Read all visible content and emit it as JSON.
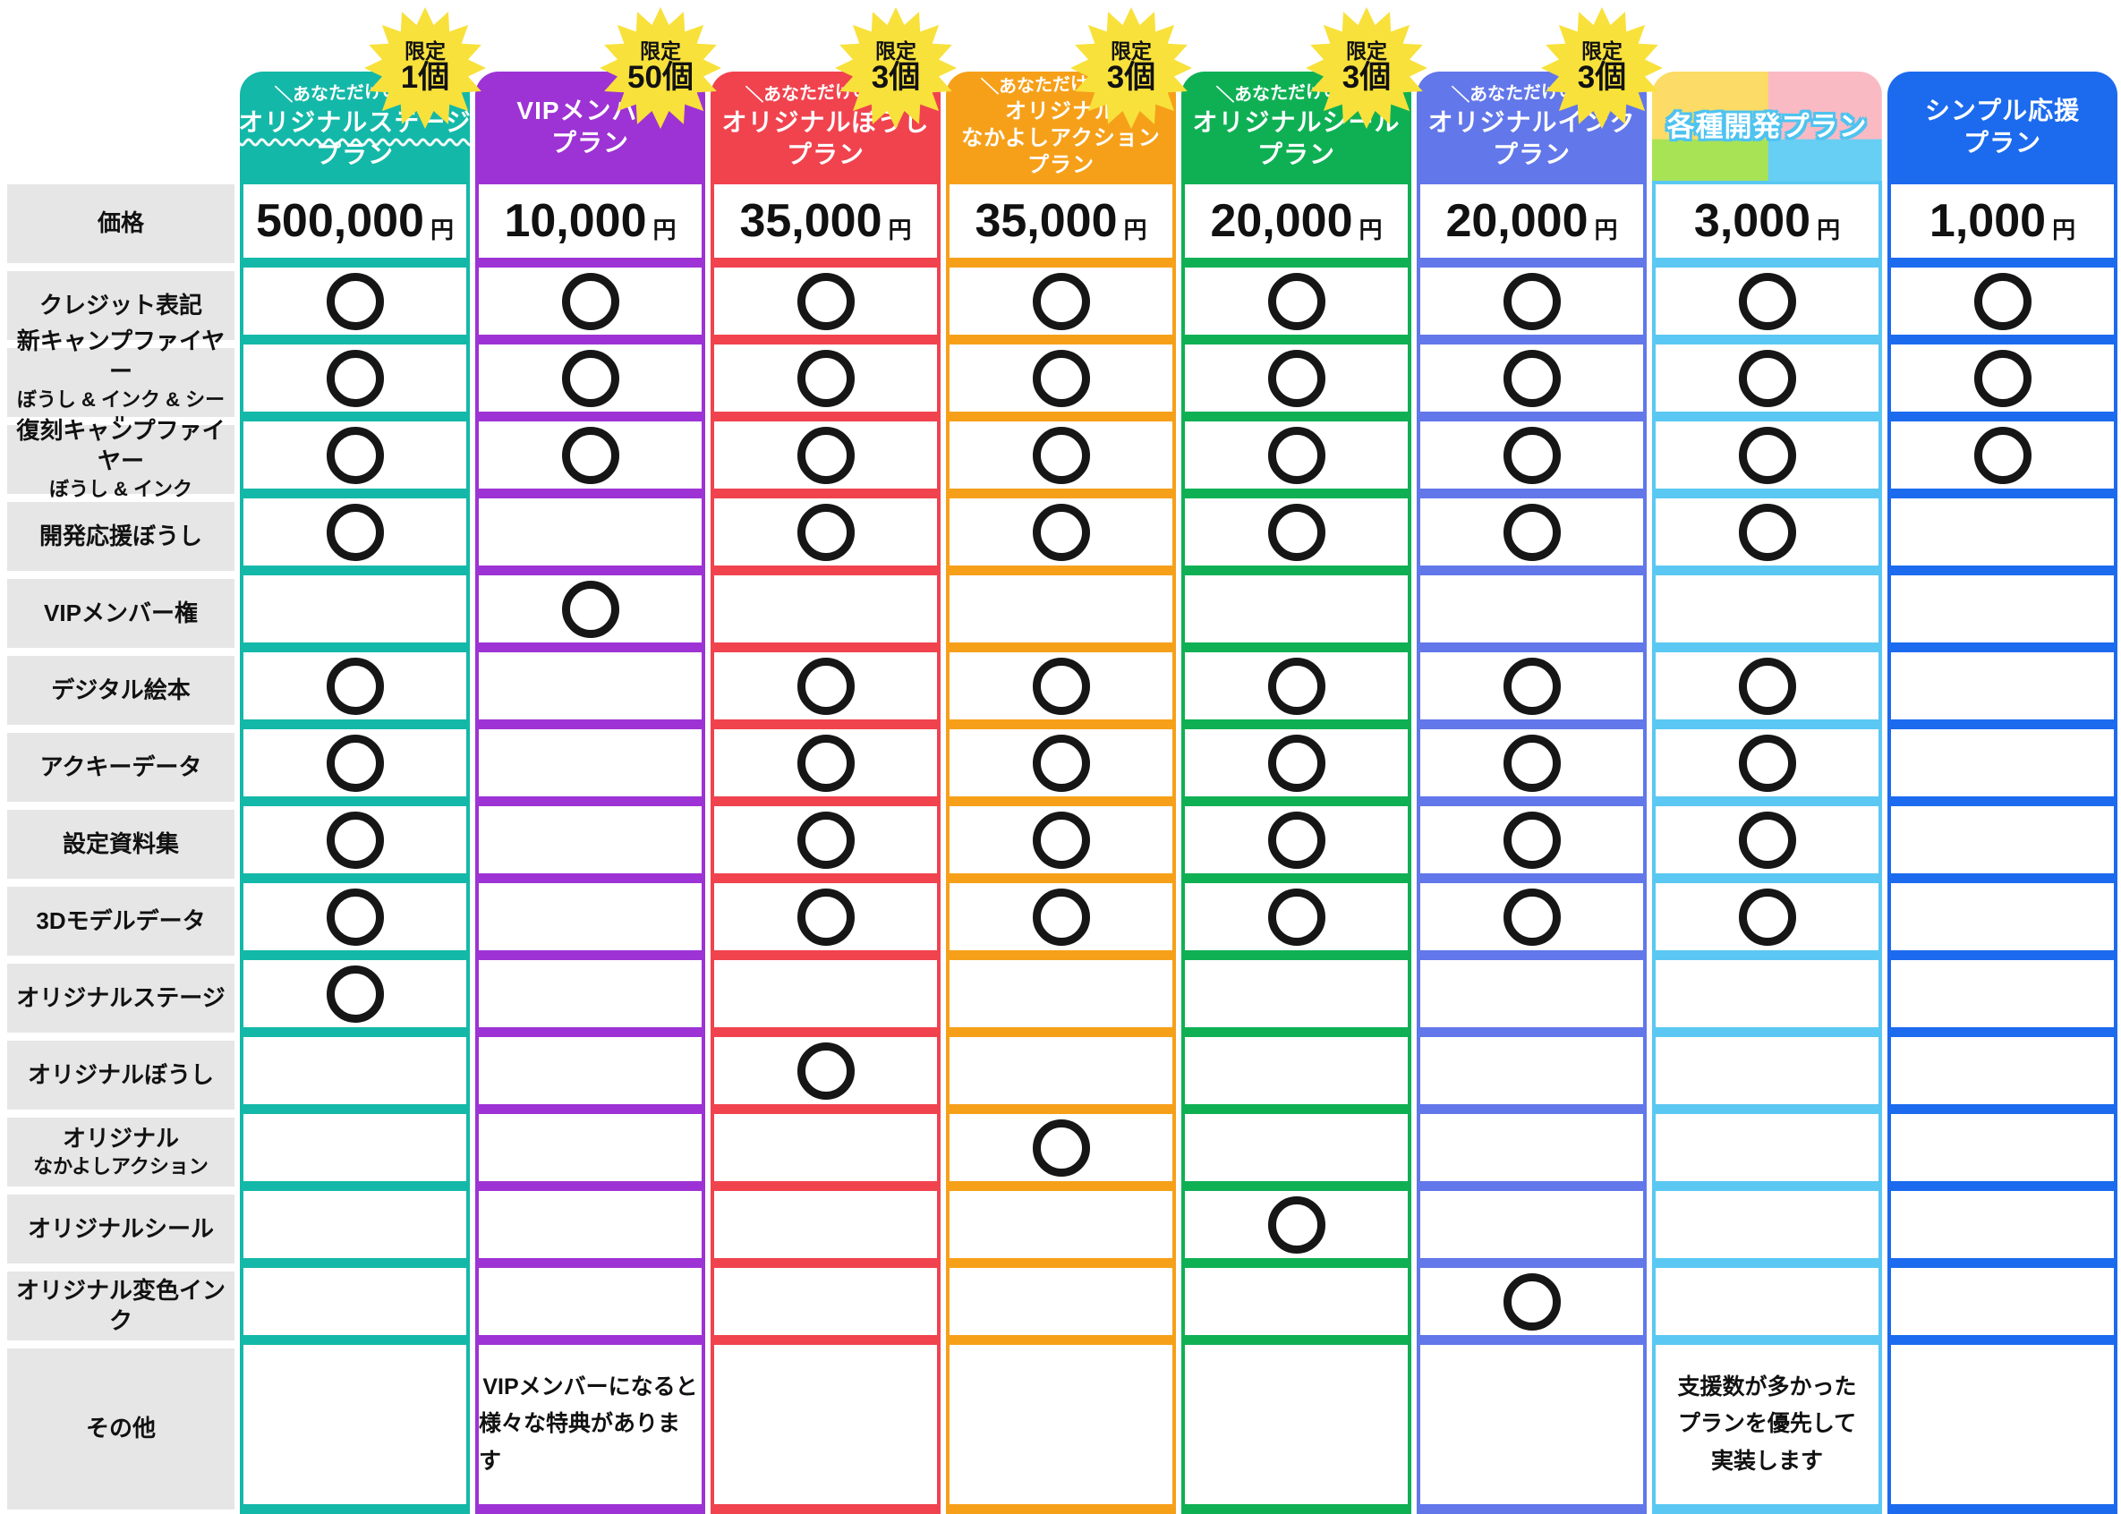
{
  "labels": {
    "price_row": "価格",
    "other_row": "その他",
    "feature_rows": [
      [
        "クレジット表記"
      ],
      [
        "新キャンプファイヤー",
        "ぼうし & インク & シール"
      ],
      [
        "復刻キャンプファイヤー",
        "ぼうし & インク"
      ],
      [
        "開発応援ぼうし"
      ],
      [
        "VIPメンバー権"
      ],
      [
        "デジタル絵本"
      ],
      [
        "アクキーデータ"
      ],
      [
        "設定資料集"
      ],
      [
        "3Dモデルデータ"
      ],
      [
        "オリジナルステージ"
      ],
      [
        "オリジナルぼうし"
      ],
      [
        "オリジナル",
        "なかよしアクション"
      ],
      [
        "オリジナルシール"
      ],
      [
        "オリジナル変色インク"
      ]
    ]
  },
  "colors": {
    "label_bg": "#e6e6e6",
    "badge_bg": "#f8e13b",
    "circle_mark": "#161616",
    "outline_blue": "#4ec3f0"
  },
  "circle_mark": "〇",
  "plans": [
    {
      "id": "original-stage",
      "color": "#14b8a8",
      "tagline": "＼あなただけの！／",
      "name_lines": [
        "オリジナルステージ",
        "プラン"
      ],
      "wavy_underline": true,
      "badge": {
        "label": "限定",
        "count": "1個"
      },
      "price": "500,000",
      "price_unit": "円",
      "features": [
        1,
        1,
        1,
        1,
        0,
        1,
        1,
        1,
        1,
        1,
        0,
        0,
        0,
        0
      ],
      "other_note_lines": []
    },
    {
      "id": "vip-member",
      "color": "#9d33d4",
      "tagline": null,
      "name_lines": [
        "VIPメンバー",
        "プラン"
      ],
      "badge": {
        "label": "限定",
        "count": "50個"
      },
      "price": "10,000",
      "price_unit": "円",
      "features": [
        1,
        1,
        1,
        0,
        1,
        0,
        0,
        0,
        0,
        0,
        0,
        0,
        0,
        0
      ],
      "other_note_lines": [
        "VIPメンバーになると",
        "様々な特典があります"
      ]
    },
    {
      "id": "original-boushi",
      "color": "#f0434e",
      "tagline": "＼あなただけの！／",
      "name_lines": [
        "オリジナルぼうし",
        "プラン"
      ],
      "badge": {
        "label": "限定",
        "count": "3個"
      },
      "price": "35,000",
      "price_unit": "円",
      "features": [
        1,
        1,
        1,
        1,
        0,
        1,
        1,
        1,
        1,
        0,
        1,
        0,
        0,
        0
      ],
      "other_note_lines": []
    },
    {
      "id": "original-nakayoshi-action",
      "color": "#f6a019",
      "tagline": "＼あなただけの！／",
      "name_lines": [
        "オリジナル",
        "なかよしアクション",
        "プラン"
      ],
      "badge": {
        "label": "限定",
        "count": "3個"
      },
      "price": "35,000",
      "price_unit": "円",
      "features": [
        1,
        1,
        1,
        1,
        0,
        1,
        1,
        1,
        1,
        0,
        0,
        1,
        0,
        0
      ],
      "other_note_lines": []
    },
    {
      "id": "original-seal",
      "color": "#0fb054",
      "tagline": "＼あなただけの！／",
      "name_lines": [
        "オリジナルシール",
        "プラン"
      ],
      "badge": {
        "label": "限定",
        "count": "3個"
      },
      "price": "20,000",
      "price_unit": "円",
      "features": [
        1,
        1,
        1,
        1,
        0,
        1,
        1,
        1,
        1,
        0,
        0,
        0,
        1,
        0
      ],
      "other_note_lines": []
    },
    {
      "id": "original-ink",
      "color": "#6277e9",
      "tagline": "＼あなただけの！／",
      "name_lines": [
        "オリジナルインク",
        "プラン"
      ],
      "badge": {
        "label": "限定",
        "count": "3個"
      },
      "price": "20,000",
      "price_unit": "円",
      "features": [
        1,
        1,
        1,
        1,
        0,
        1,
        1,
        1,
        1,
        0,
        0,
        0,
        0,
        1
      ],
      "other_note_lines": []
    },
    {
      "id": "kakushu-kaihatsu",
      "color": "#5ac8f2",
      "tagline": null,
      "name_lines": [
        "各種開発プラン"
      ],
      "outlined_title": true,
      "header_quadrants": [
        "#fcdb66",
        "#f9bac4",
        "#a8e356",
        "#67cef4"
      ],
      "badge": null,
      "price": "3,000",
      "price_unit": "円",
      "features": [
        1,
        1,
        1,
        1,
        0,
        1,
        1,
        1,
        1,
        0,
        0,
        0,
        0,
        0
      ],
      "other_note_lines": [
        "支援数が多かった",
        "プランを優先して",
        "実装します"
      ]
    },
    {
      "id": "simple-ouen",
      "color": "#1c6bee",
      "tagline": null,
      "name_lines": [
        "シンプル応援",
        "プラン"
      ],
      "badge": null,
      "price": "1,000",
      "price_unit": "円",
      "features": [
        1,
        1,
        1,
        0,
        0,
        0,
        0,
        0,
        0,
        0,
        0,
        0,
        0,
        0
      ],
      "other_note_lines": []
    }
  ],
  "chart_data": {
    "type": "table",
    "title": "",
    "columns": [
      "オリジナルステージプラン",
      "VIPメンバープラン",
      "オリジナルぼうしプラン",
      "オリジナルなかよしアクションプラン",
      "オリジナルシールプラン",
      "オリジナルインクプラン",
      "各種開発プラン",
      "シンプル応援プラン"
    ],
    "limited_counts": [
      "限定1個",
      "限定50個",
      "限定3個",
      "限定3個",
      "限定3個",
      "限定3個",
      "",
      ""
    ],
    "rows": [
      "価格",
      "クレジット表記",
      "新キャンプファイヤーぼうし & インク & シール",
      "復刻キャンプファイヤーぼうし & インク",
      "開発応援ぼうし",
      "VIPメンバー権",
      "デジタル絵本",
      "アクキーデータ",
      "設定資料集",
      "3Dモデルデータ",
      "オリジナルステージ",
      "オリジナルぼうし",
      "オリジナルなかよしアクション",
      "オリジナルシール",
      "オリジナル変色インク",
      "その他"
    ],
    "prices_yen": [
      500000,
      10000,
      35000,
      35000,
      20000,
      20000,
      3000,
      1000
    ],
    "matrix": [
      [
        1,
        1,
        1,
        1,
        1,
        1,
        1,
        1
      ],
      [
        1,
        1,
        1,
        1,
        1,
        1,
        1,
        1
      ],
      [
        1,
        1,
        1,
        1,
        1,
        1,
        1,
        1
      ],
      [
        1,
        0,
        1,
        1,
        1,
        1,
        1,
        0
      ],
      [
        0,
        1,
        0,
        0,
        0,
        0,
        0,
        0
      ],
      [
        1,
        0,
        1,
        1,
        1,
        1,
        1,
        0
      ],
      [
        1,
        0,
        1,
        1,
        1,
        1,
        1,
        0
      ],
      [
        1,
        0,
        1,
        1,
        1,
        1,
        1,
        0
      ],
      [
        1,
        0,
        1,
        1,
        1,
        1,
        1,
        0
      ],
      [
        1,
        0,
        0,
        0,
        0,
        0,
        0,
        0
      ],
      [
        0,
        0,
        1,
        0,
        0,
        0,
        0,
        0
      ],
      [
        0,
        0,
        0,
        1,
        0,
        0,
        0,
        0
      ],
      [
        0,
        0,
        0,
        0,
        1,
        0,
        0,
        0
      ],
      [
        0,
        0,
        0,
        0,
        0,
        1,
        0,
        0
      ]
    ],
    "other_notes": {
      "VIPメンバープラン": "VIPメンバーになると様々な特典があります",
      "各種開発プラン": "支援数が多かったプランを優先して実装します"
    }
  }
}
